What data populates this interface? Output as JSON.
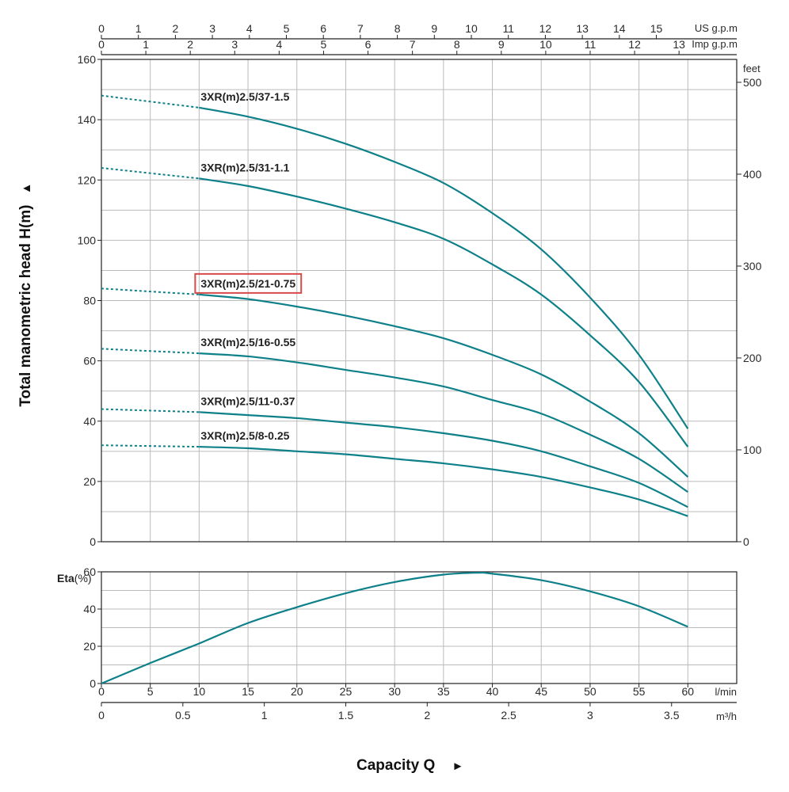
{
  "chart_data": [
    {
      "type": "line",
      "panel": "head",
      "ylabel": "Total manometric head H(m)",
      "ylabel_arrow": "▲",
      "xlabel": "Capacity Q",
      "xlabel_arrow": "►",
      "xlim": [
        0,
        65
      ],
      "ylim": [
        0,
        160
      ],
      "x_unit": "l/min",
      "y_ticks": [
        0,
        20,
        40,
        60,
        80,
        100,
        120,
        140,
        160
      ],
      "right_axis": {
        "unit": "feet",
        "ticks": [
          0,
          100,
          200,
          300,
          400,
          500
        ],
        "feet_per_metre": 3.28084
      },
      "top_axes": [
        {
          "unit": "US g.p.m",
          "ticks": [
            "0",
            "1",
            "2",
            "3",
            "4",
            "5",
            "6",
            "7",
            "8",
            "9",
            "10",
            "11",
            "12",
            "13",
            "14",
            "15"
          ],
          "lpm_per_unit": 3.785
        },
        {
          "unit": "Imp g.p.m",
          "ticks": [
            "0",
            "1",
            "2",
            "3",
            "4",
            "5",
            "6",
            "7",
            "8",
            "9",
            "10",
            "11",
            "12",
            "13"
          ],
          "lpm_per_unit": 4.546
        }
      ],
      "grid": true,
      "dashed_until_x": 10,
      "series": [
        {
          "name": "3XR(m)2.5/37-1.5",
          "highlighted": false,
          "x": [
            0,
            10,
            15,
            20,
            25,
            30,
            35,
            40,
            45,
            50,
            55,
            60
          ],
          "y": [
            148,
            144,
            141,
            137,
            132,
            126,
            119,
            109,
            97,
            81,
            62,
            37.5
          ]
        },
        {
          "name": "3XR(m)2.5/31-1.1",
          "highlighted": false,
          "x": [
            0,
            10,
            15,
            20,
            25,
            30,
            35,
            40,
            45,
            50,
            55,
            60
          ],
          "y": [
            124,
            120.5,
            118,
            114.5,
            110.5,
            106,
            100.5,
            92,
            82,
            68.5,
            53,
            31.5
          ]
        },
        {
          "name": "3XR(m)2.5/21-0.75",
          "highlighted": true,
          "x": [
            0,
            10,
            15,
            20,
            25,
            30,
            35,
            40,
            45,
            50,
            55,
            60
          ],
          "y": [
            84,
            82,
            80.5,
            78,
            75,
            71.5,
            67.5,
            62,
            55.5,
            46.5,
            36,
            21.5
          ]
        },
        {
          "name": "3XR(m)2.5/16-0.55",
          "highlighted": false,
          "x": [
            0,
            10,
            15,
            20,
            25,
            30,
            35,
            40,
            45,
            50,
            55,
            60
          ],
          "y": [
            64,
            62.5,
            61.5,
            59.5,
            57,
            54.5,
            51.5,
            47,
            42.5,
            35.5,
            27.5,
            16.5
          ]
        },
        {
          "name": "3XR(m)2.5/11-0.37",
          "highlighted": false,
          "x": [
            0,
            10,
            15,
            20,
            25,
            30,
            35,
            40,
            45,
            50,
            55,
            60
          ],
          "y": [
            44,
            43,
            42,
            41,
            39.5,
            38,
            36,
            33.5,
            30,
            25,
            19.5,
            11.5
          ]
        },
        {
          "name": "3XR(m)2.5/8-0.25",
          "highlighted": false,
          "x": [
            0,
            10,
            15,
            20,
            25,
            30,
            35,
            40,
            45,
            50,
            55,
            60
          ],
          "y": [
            32,
            31.5,
            31,
            30,
            29,
            27.5,
            26,
            24,
            21.5,
            18,
            14,
            8.5
          ]
        }
      ]
    },
    {
      "type": "line",
      "panel": "efficiency",
      "ylabel": "Eta(%)",
      "xlim": [
        0,
        65
      ],
      "ylim": [
        0,
        60
      ],
      "y_ticks": [
        0,
        20,
        40,
        60
      ],
      "x_ticks": [
        0,
        5,
        10,
        15,
        20,
        25,
        30,
        35,
        40,
        45,
        50,
        55,
        60
      ],
      "x_unit": "l/min",
      "bottom_axis": {
        "unit": "m³/h",
        "ticks": [
          "0",
          "0.5",
          "1",
          "1.5",
          "2",
          "2.5",
          "3",
          "3.5"
        ],
        "lpm_per_unit": 16.667
      },
      "grid": true,
      "series": [
        {
          "x": [
            0,
            5,
            10,
            15,
            20,
            25,
            30,
            35,
            38.5,
            40,
            45,
            50,
            55,
            60
          ],
          "y": [
            0,
            11,
            21.5,
            32.5,
            41,
            48.5,
            54.5,
            58.5,
            59.5,
            59,
            55.5,
            49.5,
            41.5,
            30.5
          ]
        }
      ]
    }
  ],
  "colors": {
    "curve": "#0e8089",
    "grid": "#bbbbbb",
    "highlight_box": "#d84a4a",
    "axis": "#222222"
  }
}
